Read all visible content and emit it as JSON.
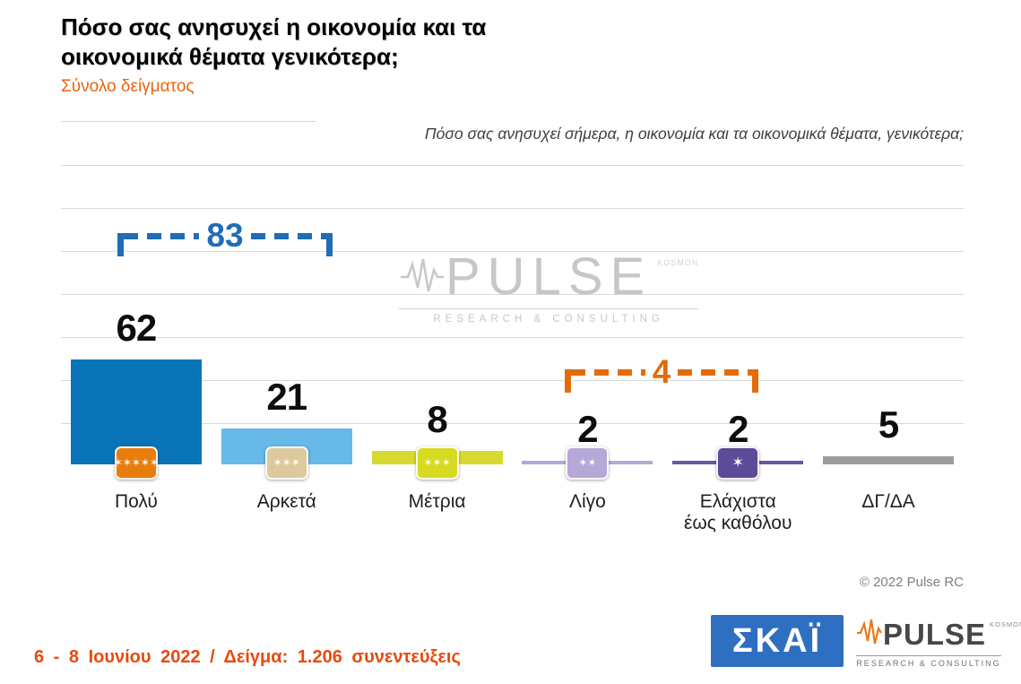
{
  "header": {
    "title_line1": "Πόσο σας ανησυχεί η οικονομία και τα",
    "title_line2": "οικονομικά θέματα γενικότερα;",
    "subtitle": "Σύνολο δείγματος"
  },
  "question": "Πόσο σας ανησυχεί σήμερα, η οικονομία και τα οικονομικά θέματα, γενικότερα;",
  "chart_data": {
    "type": "bar",
    "title": "Πόσο σας ανησυχεί η οικονομία και τα οικονομικά θέματα γενικότερα;",
    "subtitle": "Σύνολο δείγματος",
    "categories": [
      "Πολύ",
      "Αρκετά",
      "Μέτρια",
      "Λίγο",
      "Ελάχιστα έως καθόλου",
      "ΔΓ/ΔΑ"
    ],
    "values": [
      62,
      21,
      8,
      2,
      2,
      5
    ],
    "bar_colors": [
      "#0a74b8",
      "#66b9e8",
      "#d7da2f",
      "#b5a8d6",
      "#6b54a5",
      "#9c9c9c"
    ],
    "icon_colors": [
      "#e87d0e",
      "#dcca9e",
      "#d6da20",
      "#b5a8d6",
      "#5d4a99",
      ""
    ],
    "icon_stars": [
      5,
      3,
      3,
      2,
      1,
      0
    ],
    "ylim": [
      0,
      80
    ],
    "grid": true,
    "legend": "none",
    "groups": [
      {
        "label": "83",
        "members": [
          "Πολύ",
          "Αρκετά"
        ],
        "color": "#1f6db6"
      },
      {
        "label": "4",
        "members": [
          "Λίγο",
          "Ελάχιστα έως καθόλου"
        ],
        "color": "#e36c09"
      }
    ]
  },
  "watermark": {
    "brand": "PULSE",
    "side": "KOSMON",
    "tagline": "RESEARCH & CONSULTING"
  },
  "copyright": "© 2022 Pulse RC",
  "footer": {
    "fieldwork": "6 - 8 Ιουνίου 2022 / Δείγμα: 1.206 συνεντεύξεις"
  },
  "logos": {
    "skai": "ΣΚΑΪ",
    "pulse_brand": "PULSE",
    "pulse_side": "KOSMON",
    "pulse_tagline": "RESEARCH & CONSULTING"
  }
}
